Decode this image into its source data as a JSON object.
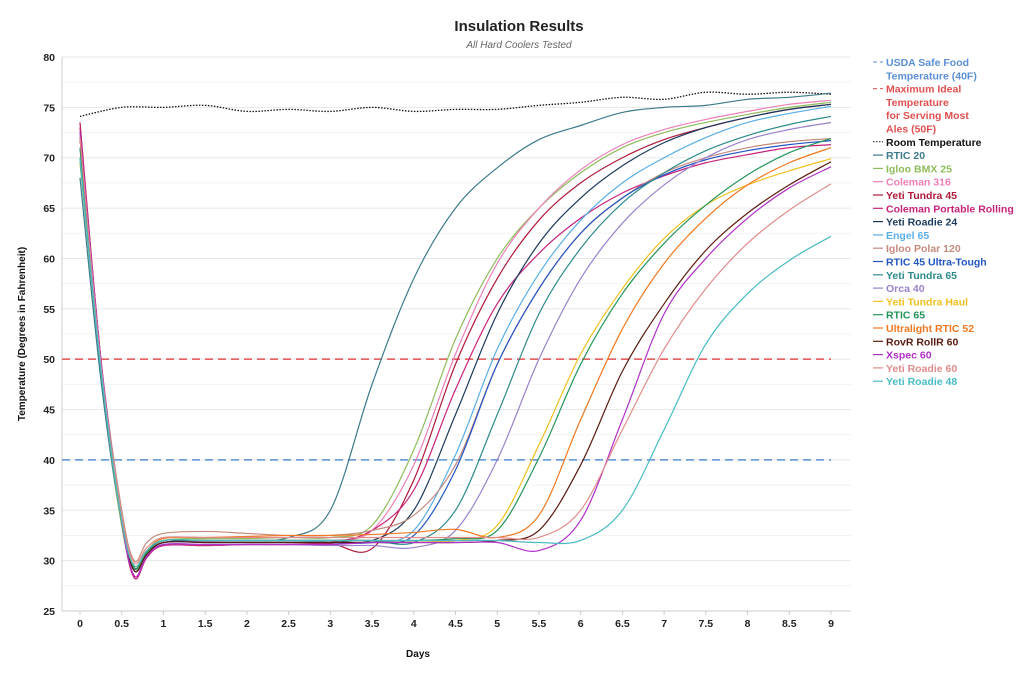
{
  "chart_data": {
    "type": "line",
    "title": "Insulation Results",
    "subtitle": "All Hard Coolers Tested",
    "xlabel": "Days",
    "ylabel": "Temperature (Degrees in Fahrenheit)",
    "xlim": [
      0,
      9
    ],
    "ylim": [
      25,
      80
    ],
    "x_ticks": [
      "0",
      "0.5",
      "1",
      "1.5",
      "2",
      "2.5",
      "3",
      "3.5",
      "4",
      "4.5",
      "5",
      "5.5",
      "6",
      "6.5",
      "7",
      "7.5",
      "8",
      "8.5",
      "9"
    ],
    "y_ticks": [
      "25",
      "30",
      "35",
      "40",
      "45",
      "50",
      "55",
      "60",
      "65",
      "70",
      "75",
      "80"
    ],
    "grid": "horizontal",
    "legend": "right",
    "x": [
      0,
      0.25,
      0.5,
      0.65,
      0.8,
      1,
      1.5,
      2,
      2.5,
      3,
      3.5,
      4,
      4.5,
      5,
      5.5,
      6,
      6.5,
      7,
      7.5,
      8,
      8.5,
      9
    ],
    "reference_lines": [
      {
        "name": "USDA Safe Food Temperature (40F)",
        "value": 40,
        "color": "#5b8fd4",
        "style": "dashed"
      },
      {
        "name": "Maximum Ideal Temperature for Serving Most Ales (50F)",
        "value": 50,
        "color": "#e05050",
        "style": "dashed"
      }
    ],
    "room": {
      "name": "Room Temperature",
      "color": "#111111",
      "style": "dotted",
      "x": [
        0,
        0.5,
        1,
        1.5,
        2,
        2.5,
        3,
        3.5,
        4,
        4.5,
        5,
        5.5,
        6,
        6.5,
        7,
        7.5,
        8,
        8.5,
        9
      ],
      "values": [
        74.1,
        75,
        75,
        75.2,
        74.6,
        74.8,
        74.6,
        75,
        74.6,
        74.8,
        74.8,
        75.2,
        75.5,
        76,
        75.8,
        76.5,
        76.3,
        76.5,
        76.3
      ]
    },
    "series": [
      {
        "name": "RTIC 20",
        "color": "#3d7a8a",
        "values": [
          68,
          48,
          33.5,
          29.2,
          30.8,
          32,
          32,
          32,
          32.3,
          35,
          47.5,
          58,
          65,
          69,
          71.8,
          73.2,
          74.5,
          75,
          75.2,
          75.8,
          76,
          76.4
        ]
      },
      {
        "name": "Igloo BMX 25",
        "color": "#8fbc5a",
        "values": [
          69.5,
          49,
          33.5,
          29,
          30.8,
          32,
          32.2,
          32.2,
          32.3,
          32.3,
          33.5,
          41,
          52,
          60,
          65,
          68.5,
          71,
          72.5,
          73.5,
          74.3,
          75,
          75.5
        ]
      },
      {
        "name": "Coleman 316",
        "color": "#ee7fb5",
        "values": [
          73,
          50,
          34,
          28.5,
          30.5,
          31.8,
          31.9,
          32,
          32,
          32,
          33,
          39.5,
          50.5,
          59.5,
          65,
          68.8,
          71.3,
          72.8,
          73.8,
          74.6,
          75.3,
          75.7
        ]
      },
      {
        "name": "Yeti Tundra 45",
        "color": "#b0183a",
        "values": [
          73.5,
          50,
          34,
          28.3,
          30.3,
          31.5,
          31.5,
          31.6,
          31.6,
          31.7,
          31.2,
          38,
          49.5,
          58,
          63.8,
          67.5,
          70,
          71.8,
          73,
          74,
          74.8,
          75.3
        ]
      },
      {
        "name": "Coleman Portable Rolling",
        "color": "#c8237a",
        "values": [
          73,
          50,
          34,
          28.3,
          30.3,
          31.5,
          31.5,
          31.6,
          31.6,
          31.8,
          33,
          37,
          47,
          55.5,
          60.5,
          64,
          66.5,
          68.2,
          69.5,
          70.3,
          71,
          71.3
        ]
      },
      {
        "name": "Yeti Roadie 24",
        "color": "#1a3a5c",
        "values": [
          72,
          49.5,
          34,
          29,
          30.6,
          31.8,
          32,
          32,
          32,
          32,
          32,
          35,
          44.5,
          54.5,
          61.5,
          66,
          69.2,
          71.5,
          73,
          74,
          74.8,
          75.3
        ]
      },
      {
        "name": "Engel 65",
        "color": "#5aaee6",
        "values": [
          71,
          49,
          34,
          29.3,
          30.8,
          32,
          32,
          32,
          32,
          31.8,
          31.8,
          33,
          40.5,
          51,
          58.5,
          63.8,
          67.5,
          70,
          72,
          73.5,
          74.4,
          75.1
        ]
      },
      {
        "name": "Igloo Polar 120",
        "color": "#c48a7e",
        "values": [
          72,
          50,
          35,
          30,
          31.8,
          32.7,
          32.9,
          32.7,
          32.5,
          32.5,
          33,
          34.5,
          39.5,
          49.5,
          57,
          62.5,
          66,
          68.5,
          70,
          71,
          71.6,
          71.9
        ]
      },
      {
        "name": "RTIC 45 Ultra-Tough",
        "color": "#2255c4",
        "values": [
          72,
          49.5,
          34,
          29,
          30.6,
          31.8,
          31.8,
          31.8,
          31.8,
          31.8,
          31.8,
          32.5,
          39,
          49.5,
          57,
          62.5,
          66,
          68.3,
          69.8,
          70.7,
          71.3,
          71.7
        ]
      },
      {
        "name": "Yeti Tundra 65",
        "color": "#2e8a8a",
        "values": [
          70,
          49,
          34,
          29.5,
          31,
          32,
          32,
          32,
          32,
          32,
          32,
          31.8,
          35,
          44.5,
          54.5,
          61,
          65.5,
          68.5,
          70.7,
          72.2,
          73.3,
          74.1
        ]
      },
      {
        "name": "Orca 40",
        "color": "#9a82cc",
        "values": [
          72,
          49.5,
          34,
          29,
          30.5,
          31.6,
          31.6,
          31.6,
          31.6,
          31.5,
          31.5,
          31.3,
          33,
          40,
          50,
          58,
          63.5,
          67.3,
          70,
          71.8,
          72.8,
          73.5
        ]
      },
      {
        "name": "Yeti Tundra Haul",
        "color": "#f0c020",
        "values": [
          72,
          49.5,
          34,
          29.3,
          30.8,
          32,
          32,
          32,
          32,
          32,
          32,
          32,
          32,
          33.5,
          41.5,
          50.5,
          57,
          62,
          65.3,
          67.3,
          68.7,
          69.9
        ]
      },
      {
        "name": "RTIC 65",
        "color": "#22945a",
        "values": [
          71,
          49,
          34,
          29.3,
          30.8,
          32,
          32,
          32,
          32,
          32,
          32,
          32,
          32.2,
          33,
          40.2,
          49.5,
          56.5,
          61.5,
          65.3,
          68.3,
          70.5,
          71.9
        ]
      },
      {
        "name": "Ultralight RTIC 52",
        "color": "#f07820",
        "values": [
          72,
          49.5,
          34,
          29.5,
          31,
          32.2,
          32.3,
          32.4,
          32.5,
          32.5,
          32.6,
          32.8,
          33.1,
          32.3,
          34.5,
          44,
          53,
          59.5,
          64,
          67.3,
          69.5,
          71
        ]
      },
      {
        "name": "RovR RollR 60",
        "color": "#5a1a10",
        "values": [
          72,
          49.5,
          34,
          29,
          30.6,
          31.8,
          31.8,
          31.8,
          31.8,
          31.8,
          31.8,
          31.8,
          31.8,
          32,
          33,
          39.5,
          48.8,
          55.5,
          60.8,
          64.5,
          67.3,
          69.6
        ]
      },
      {
        "name": "Xspec 60",
        "color": "#b030c8",
        "values": [
          72.5,
          50,
          34,
          28.5,
          30.4,
          31.6,
          31.6,
          31.6,
          31.6,
          31.6,
          31.8,
          31.8,
          31.8,
          31.8,
          31,
          34,
          44,
          54.5,
          60,
          64,
          67,
          69.1
        ]
      },
      {
        "name": "Yeti Roadie 60",
        "color": "#e08c8c",
        "values": [
          72,
          49.5,
          34.5,
          29.8,
          31.3,
          32.3,
          32.3,
          32.3,
          32.3,
          32.3,
          32.3,
          32.3,
          32.3,
          32.3,
          32.3,
          35,
          43,
          51,
          57,
          61.5,
          64.8,
          67.4
        ]
      },
      {
        "name": "Yeti Roadie 48",
        "color": "#48bcc4",
        "values": [
          70,
          49,
          34,
          29.5,
          31,
          32,
          32,
          32,
          32,
          32,
          32,
          32,
          32,
          32,
          31.8,
          32,
          35,
          43,
          51.5,
          56.5,
          59.8,
          62.2
        ]
      }
    ],
    "legend_entries": [
      {
        "lines": [
          "USDA Safe Food",
          "Temperature (40F)"
        ],
        "color": "#5b8fd4",
        "dash": "4 3"
      },
      {
        "lines": [
          "Maximum Ideal",
          "Temperature",
          "for Serving Most",
          " Ales (50F)"
        ],
        "color": "#e05050",
        "dash": "4 3"
      },
      {
        "lines": [
          "Room Temperature"
        ],
        "color": "#111111",
        "dash": "1.5 1.5"
      }
    ]
  }
}
